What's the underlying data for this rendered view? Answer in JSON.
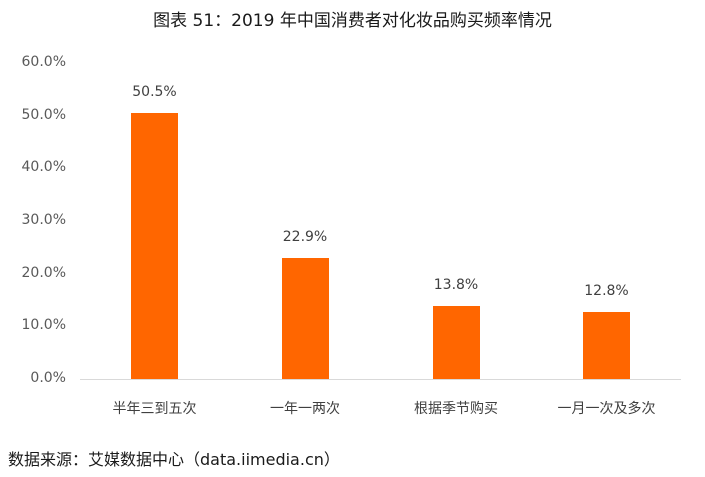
{
  "title": "图表 51：2019 年中国消费者对化妆品购买频率情况",
  "source": "数据来源：艾媒数据中心（data.iimedia.cn）",
  "colors": {
    "bar": "#ff6600",
    "axis": "#d9d9d9"
  },
  "chart_data": {
    "type": "bar",
    "title": "图表 51：2019 年中国消费者对化妆品购买频率情况",
    "categories": [
      "半年三到五次",
      "一年一两次",
      "根据季节购买",
      "一月一次及多次"
    ],
    "values": [
      50.5,
      22.9,
      13.8,
      12.8
    ],
    "data_labels": [
      "50.5%",
      "22.9%",
      "13.8%",
      "12.8%"
    ],
    "xlabel": "",
    "ylabel": "",
    "ylim": [
      0,
      60
    ],
    "yticks": [
      "0.0%",
      "10.0%",
      "20.0%",
      "30.0%",
      "40.0%",
      "50.0%",
      "60.0%"
    ],
    "grid": false,
    "legend": null
  }
}
